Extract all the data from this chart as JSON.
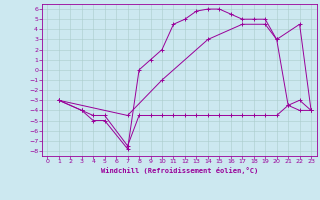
{
  "bg_color": "#cce8f0",
  "line_color": "#990099",
  "grid_color": "#aacccc",
  "xlabel": "Windchill (Refroidissement éolien,°C)",
  "xlim": [
    -0.5,
    23.5
  ],
  "ylim": [
    -8.5,
    6.5
  ],
  "xticks": [
    0,
    1,
    2,
    3,
    4,
    5,
    6,
    7,
    8,
    9,
    10,
    11,
    12,
    13,
    14,
    15,
    16,
    17,
    18,
    19,
    20,
    21,
    22,
    23
  ],
  "yticks": [
    6,
    5,
    4,
    3,
    2,
    1,
    0,
    -1,
    -2,
    -3,
    -4,
    -5,
    -6,
    -7,
    -8
  ],
  "line1_x": [
    1,
    3,
    4,
    5,
    7,
    8,
    9,
    10,
    11,
    12,
    13,
    14,
    15,
    16,
    17,
    18,
    19,
    20,
    21,
    22,
    23
  ],
  "line1_y": [
    -3,
    -4,
    -4.5,
    -4.5,
    -7.5,
    -4.5,
    -4.5,
    -4.5,
    -4.5,
    -4.5,
    -4.5,
    -4.5,
    -4.5,
    -4.5,
    -4.5,
    -4.5,
    -4.5,
    -4.5,
    -3.5,
    -4,
    -4
  ],
  "line2_x": [
    1,
    3,
    4,
    5,
    7,
    8,
    9,
    10,
    11,
    12,
    13,
    14,
    15,
    16,
    17,
    18,
    19,
    20,
    21,
    22,
    23
  ],
  "line2_y": [
    -3,
    -4,
    -5,
    -5,
    -7.8,
    0,
    1,
    2,
    4.5,
    5,
    5.8,
    6,
    6,
    5.5,
    5,
    5,
    5,
    3,
    -3.5,
    -3,
    -4
  ],
  "line3_x": [
    1,
    7,
    10,
    14,
    17,
    19,
    20,
    22,
    23
  ],
  "line3_y": [
    -3,
    -4.5,
    -1,
    3,
    4.5,
    4.5,
    3,
    4.5,
    -4
  ]
}
